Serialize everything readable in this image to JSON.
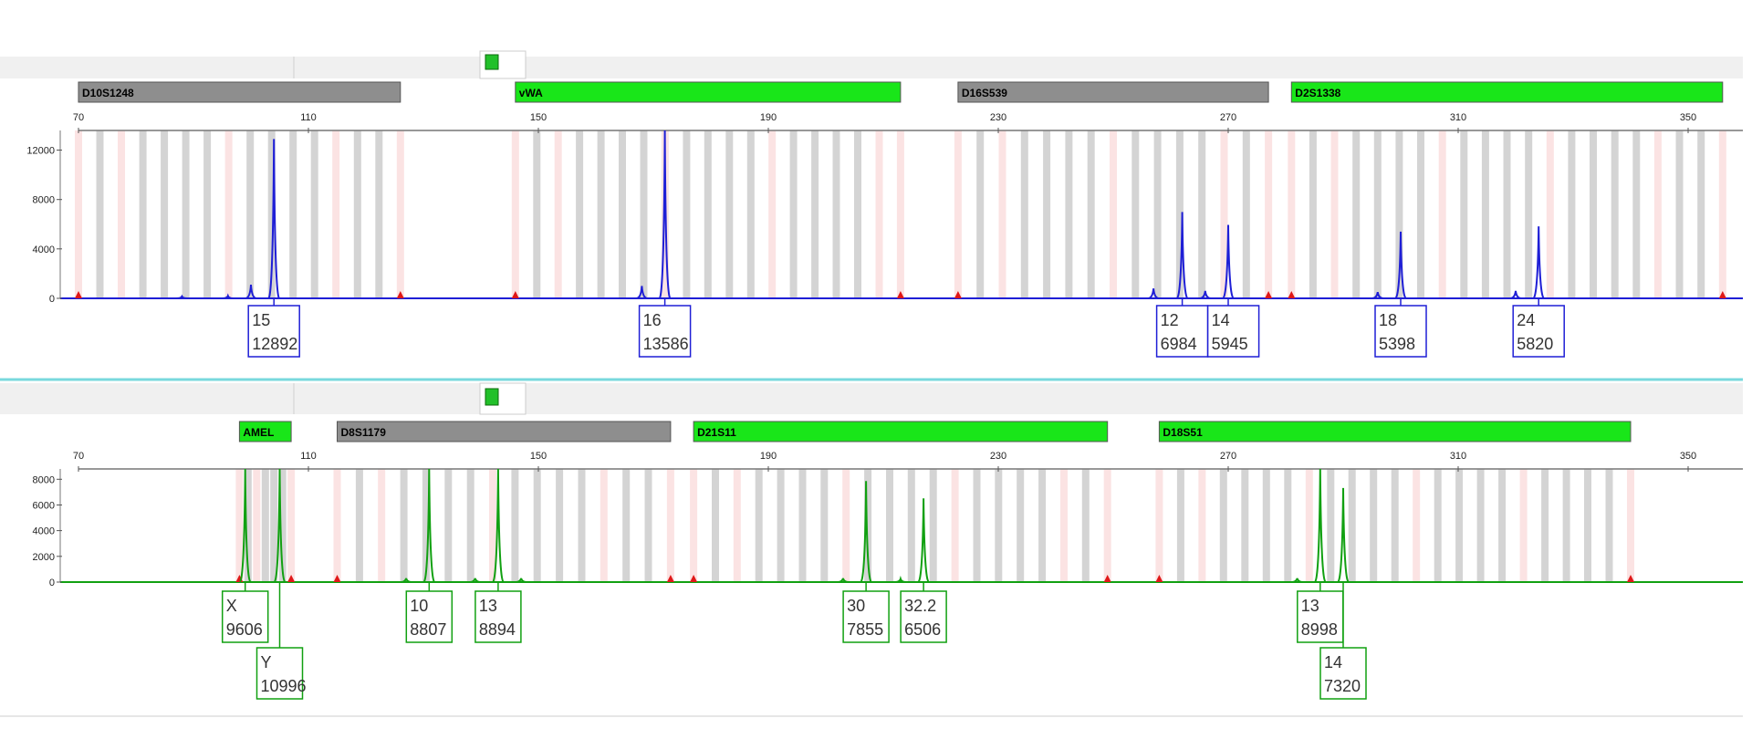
{
  "chart_data": [
    {
      "type": "line",
      "dye": "blue",
      "color": "#1f1fd6",
      "x_ticks": [
        "70",
        "110",
        "150",
        "190",
        "230",
        "270",
        "310",
        "350"
      ],
      "xlim": [
        70,
        350
      ],
      "y_ticks": [
        "12000",
        "8000",
        "4000",
        "0"
      ],
      "ylim": [
        0,
        13586
      ],
      "loci": [
        {
          "name": "D10S1248",
          "color": "#8e8e8e",
          "range": [
            70,
            126
          ]
        },
        {
          "name": "vWA",
          "color": "#19e619",
          "range": [
            146,
            213
          ]
        },
        {
          "name": "D16S539",
          "color": "#8e8e8e",
          "range": [
            223,
            277
          ]
        },
        {
          "name": "D2S1338",
          "color": "#19e619",
          "range": [
            281,
            356
          ]
        }
      ],
      "peaks": [
        {
          "x": 104,
          "height": 12892
        },
        {
          "x": 100,
          "height": 1100
        },
        {
          "x": 172,
          "height": 13586
        },
        {
          "x": 168,
          "height": 1000
        },
        {
          "x": 262,
          "height": 6984
        },
        {
          "x": 270,
          "height": 5945
        },
        {
          "x": 257,
          "height": 800
        },
        {
          "x": 266,
          "height": 600
        },
        {
          "x": 300,
          "height": 5398
        },
        {
          "x": 296,
          "height": 500
        },
        {
          "x": 324,
          "height": 5820
        },
        {
          "x": 320,
          "height": 600
        },
        {
          "x": 96,
          "height": 200
        },
        {
          "x": 88,
          "height": 150
        }
      ],
      "calls": [
        {
          "allele": "15",
          "size": "12892",
          "x": 104,
          "row": 0
        },
        {
          "allele": "16",
          "size": "13586",
          "x": 172,
          "row": 0
        },
        {
          "allele": "12",
          "size": "6984",
          "x": 262,
          "row": 0
        },
        {
          "allele": "14",
          "size": "5945",
          "x": 270,
          "row": 0
        },
        {
          "allele": "18",
          "size": "5398",
          "x": 300,
          "row": 0
        },
        {
          "allele": "24",
          "size": "5820",
          "x": 324,
          "row": 0
        }
      ]
    },
    {
      "type": "line",
      "dye": "green",
      "color": "#11a011",
      "x_ticks": [
        "70",
        "110",
        "150",
        "190",
        "230",
        "270",
        "310",
        "350"
      ],
      "xlim": [
        70,
        350
      ],
      "y_ticks": [
        "8000",
        "6000",
        "4000",
        "2000",
        "0"
      ],
      "ylim": [
        0,
        8800
      ],
      "loci": [
        {
          "name": "AMEL",
          "color": "#19e619",
          "range": [
            98,
            107
          ]
        },
        {
          "name": "D8S1179",
          "color": "#8e8e8e",
          "range": [
            115,
            173
          ]
        },
        {
          "name": "D21S11",
          "color": "#19e619",
          "range": [
            177,
            249
          ]
        },
        {
          "name": "D18S51",
          "color": "#19e619",
          "range": [
            258,
            340
          ]
        }
      ],
      "peaks": [
        {
          "x": 99,
          "height": 9606
        },
        {
          "x": 105,
          "height": 10996
        },
        {
          "x": 131,
          "height": 8807
        },
        {
          "x": 143,
          "height": 8894
        },
        {
          "x": 207,
          "height": 7855
        },
        {
          "x": 217,
          "height": 6506
        },
        {
          "x": 286,
          "height": 8998
        },
        {
          "x": 290,
          "height": 7320
        },
        {
          "x": 127,
          "height": 300
        },
        {
          "x": 139,
          "height": 300
        },
        {
          "x": 147,
          "height": 300
        },
        {
          "x": 203,
          "height": 300
        },
        {
          "x": 213,
          "height": 250
        },
        {
          "x": 282,
          "height": 300
        }
      ],
      "calls": [
        {
          "allele": "X",
          "size": "9606",
          "x": 99,
          "row": 0
        },
        {
          "allele": "Y",
          "size": "10996",
          "x": 105,
          "row": 1
        },
        {
          "allele": "10",
          "size": "8807",
          "x": 131,
          "row": 0
        },
        {
          "allele": "13",
          "size": "8894",
          "x": 143,
          "row": 0
        },
        {
          "allele": "30",
          "size": "7855",
          "x": 207,
          "row": 0
        },
        {
          "allele": "32.2",
          "size": "6506",
          "x": 217,
          "row": 0
        },
        {
          "allele": "13",
          "size": "8998",
          "x": 286,
          "row": 0
        },
        {
          "allele": "14",
          "size": "7320",
          "x": 290,
          "row": 1
        }
      ]
    }
  ]
}
